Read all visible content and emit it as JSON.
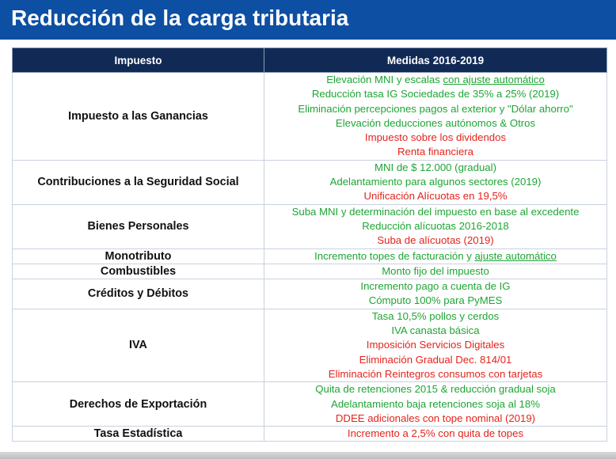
{
  "title": "Reducción de la carga tributaria",
  "colors": {
    "title_bar": "#0d4fa3",
    "header_bg": "#112a55",
    "green": "#1fa535",
    "red": "#e3241c"
  },
  "table": {
    "headers": [
      "Impuesto",
      "Medidas 2016-2019"
    ],
    "groups": [
      {
        "impuesto": "Impuesto a las Ganancias",
        "medidas": [
          {
            "text": "Elevación MNI y escalas ",
            "underlined": "con ajuste automático",
            "color": "green"
          },
          {
            "text": "Reducción tasa IG Sociedades de 35% a 25% (2019)",
            "color": "green"
          },
          {
            "text": "Eliminación percepciones pagos al exterior y \"Dólar ahorro\"",
            "color": "green"
          },
          {
            "text": "Elevación deducciones autónomos & Otros",
            "color": "green"
          },
          {
            "text": "Impuesto sobre los dividendos",
            "color": "red"
          },
          {
            "text": "Renta financiera",
            "color": "red"
          }
        ]
      },
      {
        "impuesto": "Contribuciones a la Seguridad Social",
        "medidas": [
          {
            "text": "MNI de $ 12.000 (gradual)",
            "color": "green"
          },
          {
            "text": "Adelantamiento para algunos sectores (2019)",
            "color": "green"
          },
          {
            "text": "Unificación Alícuotas en 19,5%",
            "color": "red"
          }
        ]
      },
      {
        "impuesto": "Bienes Personales",
        "medidas": [
          {
            "text": "Suba MNI y determinación del impuesto en base al excedente",
            "color": "green"
          },
          {
            "text": "Reducción alícuotas 2016-2018",
            "color": "green"
          },
          {
            "text": "Suba de alícuotas (2019)",
            "color": "red"
          }
        ]
      },
      {
        "impuesto": "Monotributo",
        "medidas": [
          {
            "text": "Incremento topes de facturación y ",
            "underlined": "ajuste automático",
            "color": "green"
          }
        ]
      },
      {
        "impuesto": "Combustibles",
        "medidas": [
          {
            "text": "Monto fijo del impuesto",
            "color": "green"
          }
        ]
      },
      {
        "impuesto": "Créditos y Débitos",
        "medidas": [
          {
            "text": "Incremento pago a cuenta de IG",
            "color": "green"
          },
          {
            "text": "Cómputo 100% para PyMES",
            "color": "green"
          }
        ]
      },
      {
        "impuesto": "IVA",
        "medidas": [
          {
            "text": "Tasa 10,5% pollos y cerdos",
            "color": "green"
          },
          {
            "text": "IVA canasta básica",
            "color": "green"
          },
          {
            "text": "Imposición Servicios Digitales",
            "color": "red"
          },
          {
            "text": "Eliminación Gradual Dec. 814/01",
            "color": "red"
          },
          {
            "text": "Eliminación Reintegros consumos con tarjetas",
            "color": "red"
          }
        ]
      },
      {
        "impuesto": "Derechos de Exportación",
        "medidas": [
          {
            "text": "Quita de retenciones 2015 & reducción gradual soja",
            "color": "green"
          },
          {
            "text": "Adelantamiento baja retenciones soja al 18%",
            "color": "green"
          },
          {
            "text": "DDEE adicionales con tope nominal (2019)",
            "color": "red"
          }
        ]
      },
      {
        "impuesto": "Tasa Estadística",
        "medidas": [
          {
            "text": "Incremento a 2,5% con quita de topes",
            "color": "red"
          }
        ]
      }
    ]
  }
}
